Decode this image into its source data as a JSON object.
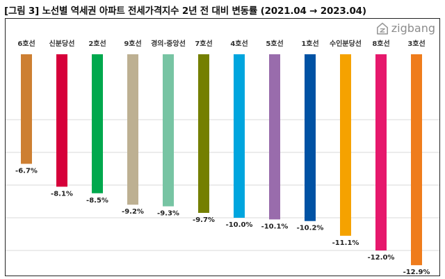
{
  "title": "[그림 3] 노선별 역세권 아파트 전세가격지수 2년 전 대비 변동률 (2021.04 → 2023.04)",
  "logo": {
    "text": "zigbang",
    "icon": "zigbang-logo-icon"
  },
  "chart_data": {
    "type": "bar",
    "title": "[그림 3] 노선별 역세권 아파트 전세가격지수 2년 전 대비 변동률 (2021.04 → 2023.04)",
    "categories": [
      "6호선",
      "신분당선",
      "2호선",
      "9호선",
      "경의·중앙선",
      "7호선",
      "4호선",
      "5호선",
      "1호선",
      "수인분당선",
      "8호선",
      "3호선"
    ],
    "values": [
      -6.7,
      -8.1,
      -8.5,
      -9.2,
      -9.3,
      -9.7,
      -10.0,
      -10.1,
      -10.2,
      -11.1,
      -12.0,
      -12.9
    ],
    "value_labels": [
      "-6.7%",
      "-8.1%",
      "-8.5%",
      "-9.2%",
      "-9.3%",
      "-9.7%",
      "-10.0%",
      "-10.1%",
      "-10.2%",
      "-11.1%",
      "-12.0%",
      "-12.9%"
    ],
    "colors": [
      "#CD7F32",
      "#D6003A",
      "#00A84D",
      "#BDB092",
      "#77C4A3",
      "#747F00",
      "#00A5DE",
      "#996CAC",
      "#0052A4",
      "#F5A200",
      "#E6186C",
      "#EF7C1C"
    ],
    "unit": "%",
    "ylim": [
      -14,
      0
    ],
    "grid": true,
    "xlabel": "",
    "ylabel": ""
  }
}
